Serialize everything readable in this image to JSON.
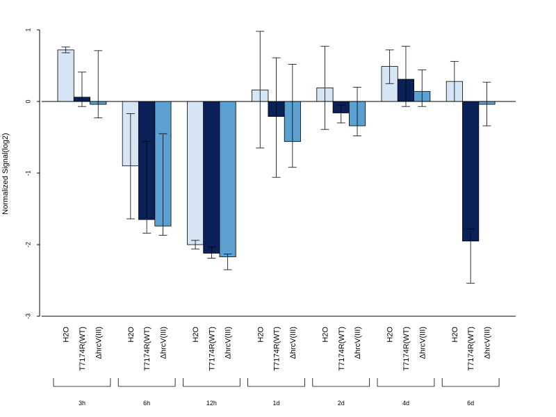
{
  "chart_data": {
    "type": "bar",
    "ylabel": "Normalized Signal(log2)",
    "xlabel": "",
    "ylim": [
      -3,
      1
    ],
    "yticks": [
      1,
      0,
      -1,
      -2,
      -3
    ],
    "grid": false,
    "series_labels": [
      "H2O",
      "T7174R(WT)",
      "ΔhrcV(III)"
    ],
    "colors": [
      "#d6e5f4",
      "#0a2158",
      "#5ba0d0"
    ],
    "groups": [
      {
        "label": "3h",
        "values": [
          0.72,
          0.06,
          -0.04
        ],
        "errors": [
          [
            0.68,
            0.76
          ],
          [
            -0.07,
            0.41
          ],
          [
            -0.23,
            0.71
          ]
        ]
      },
      {
        "label": "6h",
        "values": [
          -0.9,
          -1.65,
          -1.74
        ],
        "errors": [
          [
            -1.64,
            -0.17
          ],
          [
            -1.84,
            -0.56
          ],
          [
            -1.87,
            -0.45
          ]
        ]
      },
      {
        "label": "12h",
        "values": [
          -2.0,
          -2.12,
          -2.17
        ],
        "errors": [
          [
            -2.06,
            -1.94
          ],
          [
            -2.19,
            -2.03
          ],
          [
            -2.35,
            -2.13
          ]
        ]
      },
      {
        "label": "1d",
        "values": [
          0.16,
          -0.21,
          -0.56
        ],
        "errors": [
          [
            -0.65,
            0.98
          ],
          [
            -1.06,
            0.61
          ],
          [
            -0.92,
            0.52
          ]
        ]
      },
      {
        "label": "2d",
        "values": [
          0.19,
          -0.16,
          -0.34
        ],
        "errors": [
          [
            -0.39,
            0.77
          ],
          [
            -0.3,
            -0.05
          ],
          [
            -0.48,
            0.2
          ]
        ]
      },
      {
        "label": "4d",
        "values": [
          0.49,
          0.31,
          0.14
        ],
        "errors": [
          [
            0.25,
            0.72
          ],
          [
            -0.07,
            0.77
          ],
          [
            -0.07,
            0.44
          ]
        ]
      },
      {
        "label": "6d",
        "values": [
          0.28,
          -1.95,
          -0.04
        ],
        "errors": [
          [
            0.0,
            0.56
          ],
          [
            -2.54,
            -1.78
          ],
          [
            -0.34,
            0.27
          ]
        ]
      }
    ]
  }
}
